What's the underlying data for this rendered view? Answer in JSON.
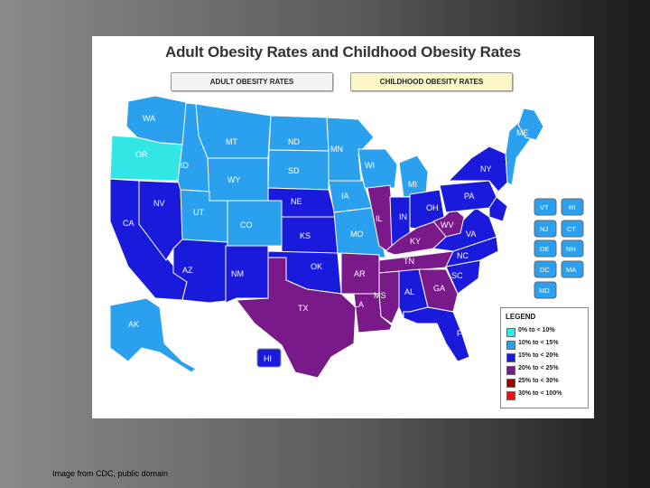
{
  "title": "Adult Obesity Rates and Childhood Obesity Rates",
  "tabs": {
    "adult": "ADULT OBESITY RATES",
    "child": "CHILDHOOD OBESITY RATES"
  },
  "colors": {
    "c0": "#33e6e6",
    "c1": "#2aa0ee",
    "c2": "#1a1add",
    "c3": "#7a1a8a",
    "c4": "#990000",
    "c5": "#ee1111"
  },
  "legend": {
    "title": "LEGEND",
    "items": [
      {
        "label": "0% to < 10%",
        "color": "#33e6e6"
      },
      {
        "label": "10% to < 15%",
        "color": "#2aa0ee"
      },
      {
        "label": "15% to < 20%",
        "color": "#1a1add"
      },
      {
        "label": "20% to < 25%",
        "color": "#7a1a8a"
      },
      {
        "label": "25% to < 30%",
        "color": "#990000"
      },
      {
        "label": "30% to < 100%",
        "color": "#ee1111"
      }
    ]
  },
  "states": {
    "WA": "WA",
    "OR": "OR",
    "CA": "CA",
    "ID": "ID",
    "NV": "NV",
    "MT": "MT",
    "WY": "WY",
    "UT": "UT",
    "AZ": "AZ",
    "CO": "CO",
    "NM": "NM",
    "ND": "ND",
    "SD": "SD",
    "NE": "NE",
    "KS": "KS",
    "OK": "OK",
    "TX": "TX",
    "MN": "MN",
    "IA": "IA",
    "MO": "MO",
    "AR": "AR",
    "LA": "LA",
    "WI": "WI",
    "IL": "IL",
    "MS": "MS",
    "MI": "MI",
    "IN": "IN",
    "KY": "KY",
    "TN": "TN",
    "AL": "AL",
    "OH": "OH",
    "WV": "WV",
    "GA": "GA",
    "FL": "FL",
    "SC": "SC",
    "NC": "NC",
    "VA": "VA",
    "PA": "PA",
    "NY": "NY",
    "ME": "ME",
    "AK": "AK",
    "HI": "HI"
  },
  "small_states": {
    "VT": "VT",
    "RI": "RI",
    "NJ": "NJ",
    "CT": "CT",
    "DE": "DE",
    "NH": "NH",
    "DC": "DC",
    "MA": "MA",
    "MD": "MD"
  },
  "caption": "Image from CDC, public domain"
}
